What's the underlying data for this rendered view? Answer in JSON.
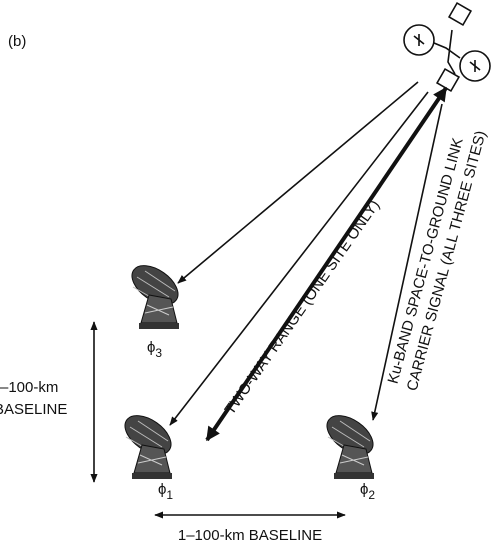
{
  "label": "(b)",
  "sites": [
    {
      "symbol": "ϕ",
      "index": "3"
    },
    {
      "symbol": "ϕ",
      "index": "1"
    },
    {
      "symbol": "ϕ",
      "index": "2"
    }
  ],
  "baselines": {
    "vertical": [
      "–100-km",
      "BASELINE"
    ],
    "horizontal": "1–100-km BASELINE"
  },
  "links": {
    "range": "TWO-WAY RANGE (ONE SITE ONLY)",
    "carrier": [
      "Ku-BAND SPACE-TO-GROUND LINK",
      "CARRIER SIGNAL (ALL THREE SITES)"
    ]
  }
}
